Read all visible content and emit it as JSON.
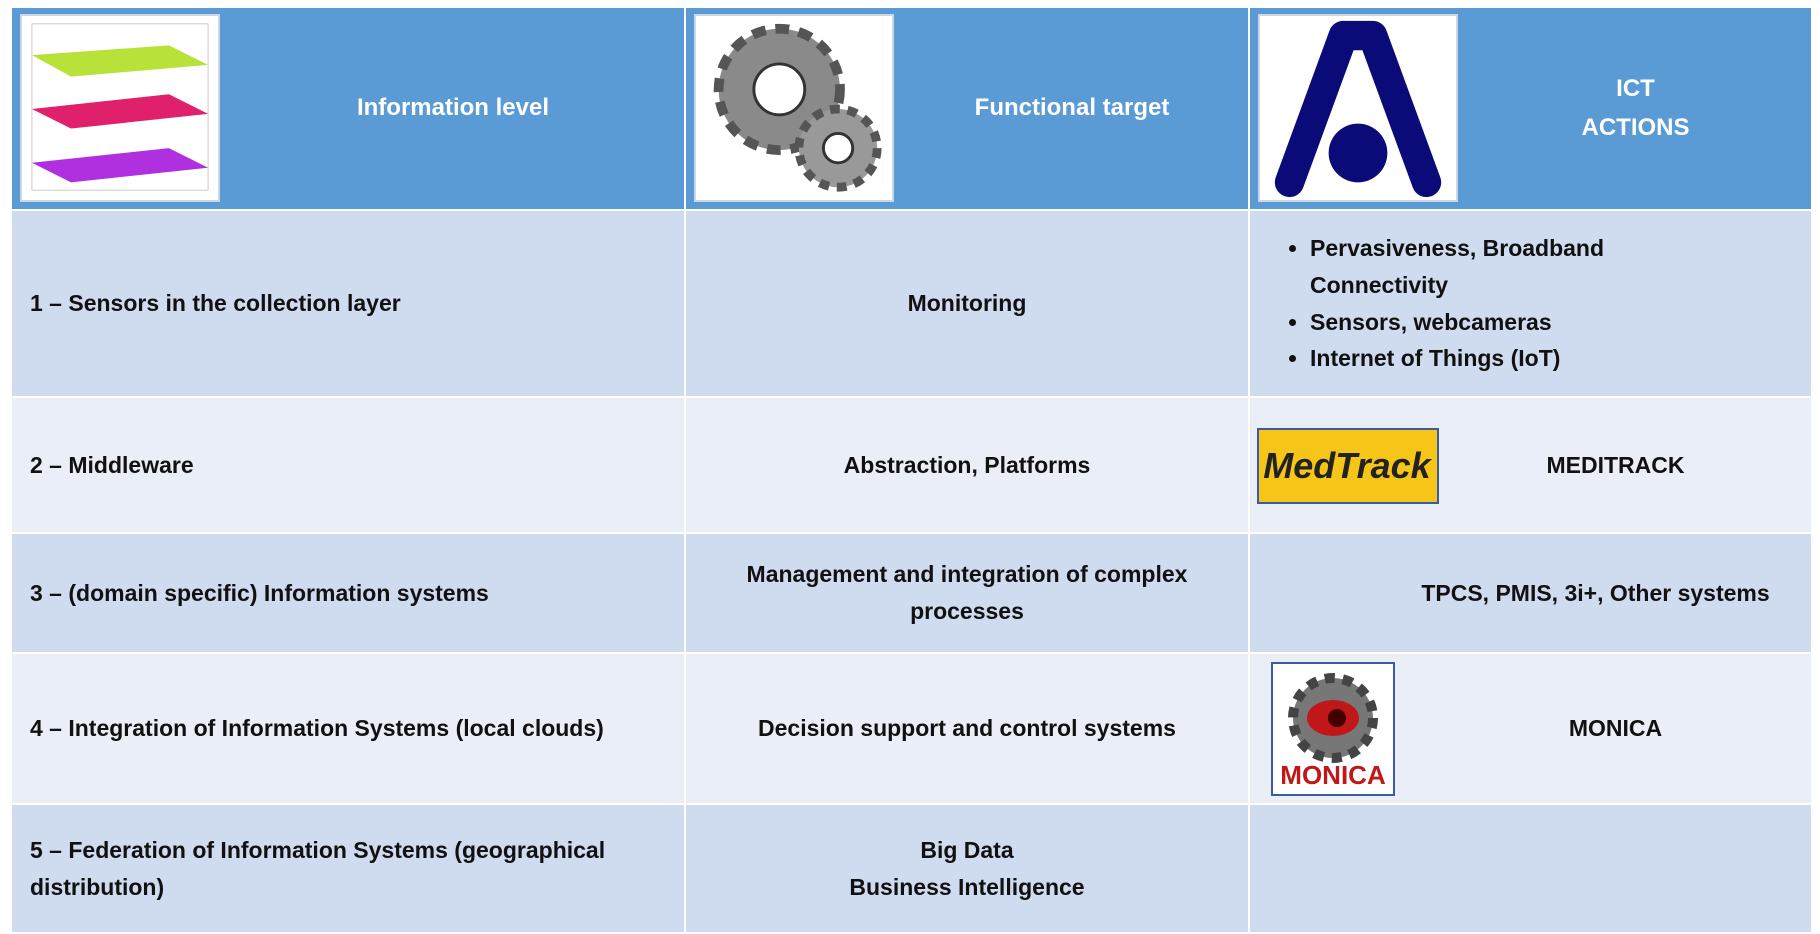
{
  "header": {
    "columns": [
      {
        "label": "Information level"
      },
      {
        "label": "Functional target"
      },
      {
        "lines": [
          "ICT",
          "ACTIONS"
        ]
      }
    ]
  },
  "rows": [
    {
      "level": "1 – Sensors in the collection layer",
      "target": [
        "Monitoring"
      ],
      "actions": {
        "bullets": [
          "Pervasiveness, Broadband Connectivity",
          "Sensors, webcameras",
          "Internet of Things (IoT)"
        ]
      }
    },
    {
      "level": "2 – Middleware",
      "target": [
        "Abstraction, Platforms"
      ],
      "actions": {
        "logo": "MedTrack",
        "text": "MEDITRACK"
      }
    },
    {
      "level": "3 – (domain specific) Information systems",
      "target": [
        "Management and integration of complex processes"
      ],
      "actions": {
        "text": "TPCS, PMIS, 3i+, Other systems"
      }
    },
    {
      "level": "4 – Integration of Information Systems (local clouds)",
      "target": [
        "Decision support and control systems"
      ],
      "actions": {
        "logo": "MONICA",
        "text": "MONICA"
      }
    },
    {
      "level": "5 – Federation of Information Systems (geographical distribution)",
      "target": [
        "Big Data",
        "Business Intelligence"
      ]
    }
  ]
}
